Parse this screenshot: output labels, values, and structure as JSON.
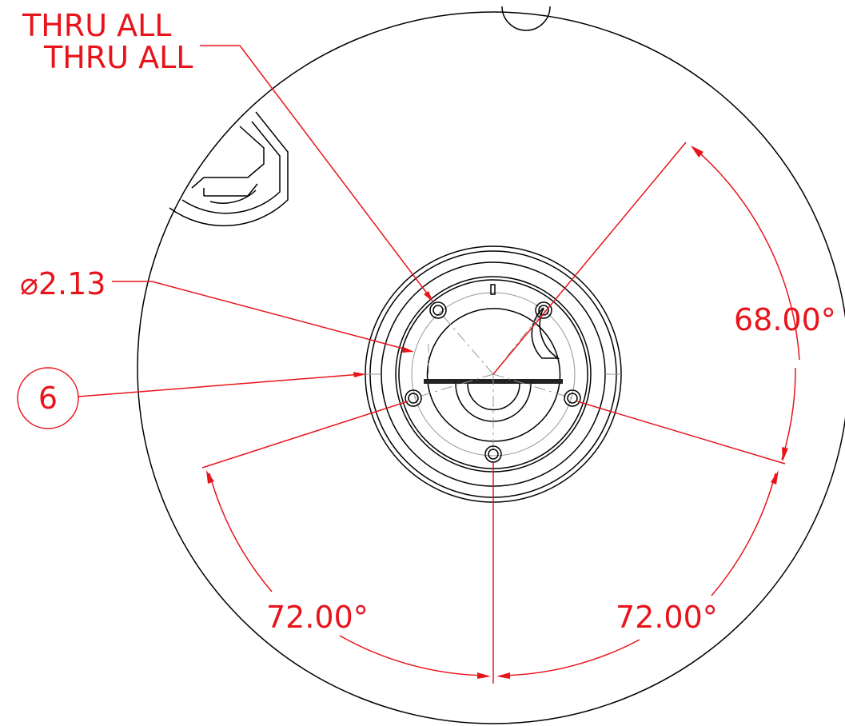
{
  "callouts": {
    "thru_all_1": "THRU ALL",
    "thru_all_2": "THRU ALL",
    "diameter": "⌀2.13",
    "balloon": "6"
  },
  "angles": {
    "top_right": "68.00°",
    "bottom_left": "72.00°",
    "bottom_right": "72.00°"
  }
}
